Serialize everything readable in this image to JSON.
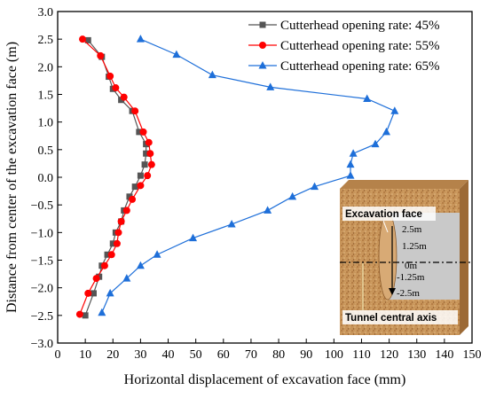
{
  "chart_data": {
    "type": "line",
    "xlabel": "Horizontal displacement of excavation face (mm)",
    "ylabel": "Distance from center of the excavation face (m)",
    "xlim": [
      0,
      150
    ],
    "ylim": [
      -3.0,
      3.0
    ],
    "xticks": [
      "0",
      "10",
      "20",
      "30",
      "40",
      "50",
      "60",
      "70",
      "80",
      "90",
      "100",
      "110",
      "120",
      "130",
      "140",
      "150"
    ],
    "yticks": [
      "−3.0",
      "−2.5",
      "−2.0",
      "−1.5",
      "−1.0",
      "−0.5",
      "0.0",
      "0.5",
      "1.0",
      "1.5",
      "2.0",
      "2.5",
      "3.0"
    ],
    "grid": false,
    "legend_position": "top-right",
    "series": [
      {
        "name": "Cutterhead opening rate: 45%",
        "color": "#555555",
        "marker": "square",
        "points": [
          [
            11,
            2.48
          ],
          [
            16,
            2.18
          ],
          [
            18.5,
            1.82
          ],
          [
            20,
            1.6
          ],
          [
            23,
            1.4
          ],
          [
            27,
            1.2
          ],
          [
            29.5,
            0.82
          ],
          [
            32,
            0.6
          ],
          [
            32,
            0.43
          ],
          [
            31.5,
            0.23
          ],
          [
            30,
            0.03
          ],
          [
            28,
            -0.17
          ],
          [
            26,
            -0.35
          ],
          [
            24,
            -0.6
          ],
          [
            23,
            -0.8
          ],
          [
            21,
            -1.0
          ],
          [
            20,
            -1.2
          ],
          [
            18,
            -1.4
          ],
          [
            16,
            -1.6
          ],
          [
            15,
            -1.8
          ],
          [
            13,
            -2.1
          ],
          [
            10,
            -2.5
          ]
        ]
      },
      {
        "name": "Cutterhead opening rate: 55%",
        "color": "#ff0000",
        "marker": "circle",
        "points": [
          [
            9,
            2.5
          ],
          [
            15.5,
            2.2
          ],
          [
            19,
            1.83
          ],
          [
            21,
            1.62
          ],
          [
            24,
            1.45
          ],
          [
            28,
            1.2
          ],
          [
            31,
            0.82
          ],
          [
            33,
            0.63
          ],
          [
            33.5,
            0.43
          ],
          [
            34,
            0.23
          ],
          [
            32.5,
            0.03
          ],
          [
            30,
            -0.15
          ],
          [
            27,
            -0.4
          ],
          [
            25,
            -0.6
          ],
          [
            23,
            -0.8
          ],
          [
            22,
            -1.0
          ],
          [
            21.5,
            -1.2
          ],
          [
            19.5,
            -1.4
          ],
          [
            17,
            -1.6
          ],
          [
            14,
            -1.83
          ],
          [
            11,
            -2.1
          ],
          [
            8,
            -2.48
          ]
        ]
      },
      {
        "name": "Cutterhead opening rate: 65%",
        "color": "#1e6fd9",
        "marker": "triangle",
        "points": [
          [
            30,
            2.5
          ],
          [
            43,
            2.22
          ],
          [
            56,
            1.85
          ],
          [
            77,
            1.63
          ],
          [
            112,
            1.42
          ],
          [
            122,
            1.2
          ],
          [
            119,
            0.82
          ],
          [
            115,
            0.6
          ],
          [
            107,
            0.43
          ],
          [
            106,
            0.23
          ],
          [
            106,
            0.03
          ],
          [
            93,
            -0.17
          ],
          [
            85,
            -0.35
          ],
          [
            76,
            -0.6
          ],
          [
            63,
            -0.85
          ],
          [
            49,
            -1.1
          ],
          [
            36,
            -1.4
          ],
          [
            30,
            -1.6
          ],
          [
            25,
            -1.83
          ],
          [
            19,
            -2.1
          ],
          [
            16,
            -2.45
          ]
        ]
      }
    ]
  },
  "inset": {
    "label_excavation_face": "Excavation face",
    "label_tunnel_axis": "Tunnel central axis",
    "marks": [
      "2.5m",
      "1.25m",
      "0m",
      "-1.25m",
      "-2.5m"
    ]
  }
}
